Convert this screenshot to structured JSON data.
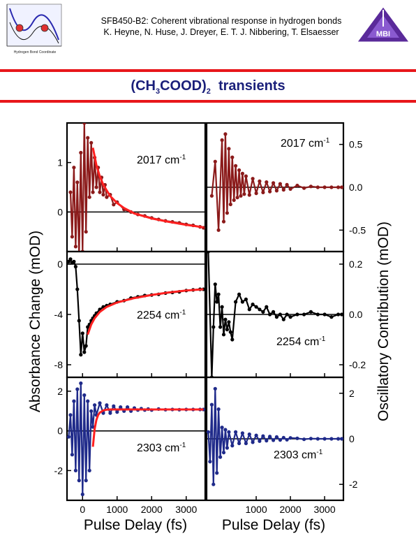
{
  "header": {
    "line1": "SFB450-B2: Coherent vibrational response in hydrogen bonds",
    "line2": "K. Heyne, N. Huse, J. Dreyer, E. T. J. Nibbering, T. Elsaesser",
    "left_logo_caption": "Hydrogen Bond Coordinate",
    "right_logo_text": "MBI"
  },
  "title": {
    "main": "(CH",
    "sub1": "3",
    "mid": "COOD)",
    "sub2": "2",
    "tail": "  transients"
  },
  "colors": {
    "accent": "#e8171b",
    "title": "#1a1f7a",
    "dark_red": "#8b1a1a",
    "fit_red": "#ff2020",
    "black": "#000000",
    "navy": "#1f2a8a"
  },
  "chart_data": [
    {
      "type": "line",
      "panel": "top-left",
      "annotation": "2017 cm",
      "annotation_sup": "-1",
      "xlim": [
        -450,
        3550
      ],
      "ylim": [
        -0.8,
        1.8
      ],
      "yticks": [
        0,
        1
      ],
      "yticklabels": [
        "0",
        "1"
      ],
      "grid": false,
      "series": [
        {
          "role": "data",
          "color": "#8b1a1a",
          "x": [
            -350,
            -300,
            -250,
            -200,
            -150,
            -100,
            -50,
            0,
            50,
            100,
            150,
            200,
            250,
            300,
            350,
            400,
            450,
            500,
            550,
            600,
            650,
            700,
            800,
            900,
            1000,
            1200,
            1400,
            1600,
            1800,
            2000,
            2200,
            2400,
            2600,
            2800,
            3000,
            3200,
            3400,
            3500
          ],
          "y": [
            0.4,
            -0.5,
            0.9,
            -0.7,
            0.6,
            -0.9,
            1.2,
            -0.8,
            1.8,
            -0.4,
            1.5,
            0.3,
            1.4,
            0.4,
            1.1,
            0.5,
            0.9,
            0.4,
            0.7,
            0.35,
            0.55,
            0.3,
            0.35,
            0.15,
            0.2,
            0.05,
            0.0,
            -0.05,
            -0.08,
            -0.12,
            -0.15,
            -0.18,
            -0.2,
            -0.22,
            -0.25,
            -0.27,
            -0.3,
            -0.32
          ]
        },
        {
          "role": "fit",
          "color": "#ff2020",
          "x": [
            300,
            400,
            500,
            600,
            800,
            1000,
            1200,
            1500,
            2000,
            2500,
            3000,
            3500
          ],
          "y": [
            1.3,
            0.95,
            0.72,
            0.55,
            0.32,
            0.18,
            0.08,
            -0.03,
            -0.13,
            -0.2,
            -0.26,
            -0.31
          ]
        }
      ]
    },
    {
      "type": "line",
      "panel": "top-right",
      "annotation": "2017  cm",
      "annotation_sup": "-1",
      "xlim": [
        -450,
        3550
      ],
      "ylim": [
        -0.75,
        0.75
      ],
      "yticks": [
        0.5,
        0.0,
        -0.5
      ],
      "yticklabels": [
        "0.5",
        "0.0",
        "-0.5"
      ],
      "grid": false,
      "series": [
        {
          "role": "data",
          "color": "#8b1a1a",
          "x": [
            -300,
            -200,
            -100,
            0,
            50,
            100,
            150,
            200,
            250,
            300,
            350,
            400,
            450,
            500,
            550,
            600,
            650,
            700,
            800,
            900,
            1000,
            1100,
            1200,
            1300,
            1400,
            1500,
            1600,
            1700,
            1800,
            1900,
            2000,
            2200,
            2400,
            2600,
            2800,
            3000,
            3200,
            3400,
            3500
          ],
          "y": [
            -0.1,
            0.3,
            -0.5,
            0.55,
            -0.4,
            0.62,
            -0.3,
            0.45,
            -0.2,
            0.35,
            -0.15,
            0.25,
            -0.12,
            0.2,
            -0.1,
            0.16,
            -0.08,
            0.13,
            -0.09,
            0.1,
            -0.07,
            0.07,
            -0.06,
            0.06,
            -0.05,
            0.05,
            -0.04,
            0.04,
            -0.03,
            0.03,
            -0.02,
            0.02,
            -0.01,
            0.01,
            0.0,
            0.0,
            0.0,
            0.0,
            0.0
          ]
        }
      ]
    },
    {
      "type": "line",
      "panel": "middle-left",
      "annotation": "2254 cm",
      "annotation_sup": "-1",
      "xlim": [
        -450,
        3550
      ],
      "ylim": [
        -9,
        1
      ],
      "yticks": [
        0,
        -4,
        -8
      ],
      "yticklabels": [
        "0",
        "-4",
        "-8"
      ],
      "grid": false,
      "series": [
        {
          "role": "data",
          "color": "#000000",
          "x": [
            -400,
            -350,
            -300,
            -250,
            -200,
            -150,
            -100,
            -50,
            0,
            50,
            100,
            150,
            200,
            250,
            300,
            350,
            400,
            500,
            600,
            700,
            800,
            1000,
            1200,
            1400,
            1600,
            1800,
            2000,
            2200,
            2400,
            2600,
            2800,
            3000,
            3200,
            3400,
            3500
          ],
          "y": [
            0.2,
            0.4,
            0.1,
            0.2,
            -0.2,
            -2.0,
            -4.5,
            -7.2,
            -5.5,
            -7.0,
            -6.5,
            -5.0,
            -4.8,
            -4.5,
            -4.3,
            -4.1,
            -3.9,
            -3.6,
            -3.4,
            -3.3,
            -3.2,
            -3.0,
            -2.9,
            -2.7,
            -2.6,
            -2.5,
            -2.45,
            -2.4,
            -2.3,
            -2.25,
            -2.2,
            -2.1,
            -2.05,
            -2.0,
            -2.0
          ]
        },
        {
          "role": "fit",
          "color": "#ff2020",
          "x": [
            150,
            250,
            350,
            500,
            700,
            1000,
            1500,
            2000,
            2500,
            3000,
            3500
          ],
          "y": [
            -5.6,
            -4.8,
            -4.3,
            -3.8,
            -3.4,
            -3.05,
            -2.7,
            -2.45,
            -2.25,
            -2.1,
            -2.0
          ]
        }
      ]
    },
    {
      "type": "line",
      "panel": "middle-right",
      "annotation": "2254 cm",
      "annotation_sup": "-1",
      "xlim": [
        -450,
        3550
      ],
      "ylim": [
        -0.25,
        0.25
      ],
      "yticks": [
        0.2,
        0.0,
        -0.2
      ],
      "yticklabels": [
        "0.2",
        "0.0",
        "-0.2"
      ],
      "grid": false,
      "series": [
        {
          "role": "data",
          "color": "#000000",
          "x": [
            -400,
            -300,
            -250,
            -200,
            -150,
            -100,
            -50,
            0,
            50,
            100,
            150,
            200,
            250,
            300,
            400,
            500,
            600,
            700,
            800,
            900,
            1000,
            1100,
            1200,
            1300,
            1400,
            1500,
            1600,
            1700,
            1800,
            1900,
            2000,
            2200,
            2400,
            2600,
            2800,
            3000,
            3200,
            3400,
            3500
          ],
          "y": [
            0.25,
            -0.25,
            -0.05,
            0.12,
            0.05,
            0.08,
            -0.05,
            0.03,
            -0.08,
            -0.02,
            -0.06,
            -0.03,
            -0.07,
            -0.1,
            0.05,
            0.08,
            0.05,
            0.06,
            0.02,
            0.04,
            0.03,
            0.02,
            0.01,
            0.03,
            0.0,
            0.01,
            -0.01,
            0.0,
            -0.02,
            0.0,
            -0.01,
            0.0,
            0.0,
            0.01,
            0.0,
            0.0,
            -0.01,
            0.0,
            0.0
          ]
        }
      ]
    },
    {
      "type": "line",
      "panel": "bottom-left",
      "annotation": "2303 cm",
      "annotation_sup": "-1",
      "xlim": [
        -450,
        3550
      ],
      "ylim": [
        -3.5,
        2.7
      ],
      "yticks": [
        2,
        0,
        -2
      ],
      "yticklabels": [
        "2",
        "0",
        "-2"
      ],
      "grid": false,
      "series": [
        {
          "role": "data",
          "color": "#1f2a8a",
          "x": [
            -400,
            -350,
            -300,
            -250,
            -200,
            -150,
            -100,
            -50,
            0,
            50,
            100,
            150,
            200,
            250,
            300,
            350,
            400,
            500,
            600,
            700,
            800,
            900,
            1000,
            1100,
            1200,
            1300,
            1400,
            1500,
            1600,
            1700,
            1800,
            1900,
            2000,
            2200,
            2400,
            2600,
            2800,
            3000,
            3200,
            3400,
            3500
          ],
          "y": [
            -0.3,
            0.8,
            -1.2,
            1.5,
            -2.0,
            2.1,
            -2.5,
            2.4,
            -3.2,
            1.8,
            -2.5,
            1.5,
            -2.0,
            1.0,
            0.2,
            1.3,
            0.8,
            1.4,
            0.9,
            1.3,
            0.9,
            1.25,
            0.95,
            1.2,
            1.0,
            1.2,
            1.0,
            1.15,
            1.05,
            1.12,
            1.05,
            1.1,
            1.05,
            1.1,
            1.07,
            1.08,
            1.07,
            1.08,
            1.08,
            1.08,
            1.08
          ]
        },
        {
          "role": "fit",
          "color": "#ff2020",
          "x": [
            300,
            350,
            400,
            450,
            500,
            600,
            700,
            800,
            1000,
            1500,
            2000,
            2500,
            3000,
            3500
          ],
          "y": [
            -0.8,
            0.1,
            0.55,
            0.8,
            0.92,
            1.03,
            1.07,
            1.08,
            1.08,
            1.08,
            1.08,
            1.08,
            1.08,
            1.08
          ]
        }
      ]
    },
    {
      "type": "line",
      "panel": "bottom-right",
      "annotation": "2303 cm",
      "annotation_sup": "-1",
      "xlim": [
        -450,
        3550
      ],
      "ylim": [
        -2.7,
        2.7
      ],
      "yticks": [
        2,
        0,
        -2
      ],
      "yticklabels": [
        "2",
        "0",
        "-2"
      ],
      "xticks": [
        1000,
        2000,
        3000
      ],
      "xticklabels": [
        "1000",
        "2000",
        "3000"
      ],
      "grid": false,
      "series": [
        {
          "role": "data",
          "color": "#1f2a8a",
          "x": [
            -400,
            -350,
            -300,
            -250,
            -200,
            -150,
            -100,
            -50,
            0,
            50,
            100,
            150,
            200,
            300,
            400,
            500,
            600,
            700,
            800,
            900,
            1000,
            1100,
            1200,
            1300,
            1400,
            1500,
            1600,
            1700,
            1800,
            1900,
            2000,
            2200,
            2400,
            2600,
            2800,
            3000,
            3200,
            3400,
            3500
          ],
          "y": [
            0.3,
            -1.0,
            1.5,
            -2.0,
            2.2,
            -1.5,
            1.3,
            -0.8,
            0.5,
            -0.6,
            0.4,
            -0.4,
            0.3,
            -0.3,
            0.3,
            -0.2,
            0.25,
            -0.2,
            0.2,
            -0.15,
            0.15,
            -0.1,
            0.12,
            -0.08,
            0.1,
            -0.06,
            0.08,
            -0.05,
            0.05,
            -0.04,
            0.04,
            0.02,
            -0.02,
            0.01,
            0.0,
            0.0,
            0.0,
            0.0,
            0.0
          ]
        }
      ]
    }
  ],
  "axes": {
    "left_ylabel": "Absorbance Change (mOD)",
    "right_ylabel": "Oscillatory Contribution (mOD)",
    "xlabel_left": "Pulse Delay (fs)",
    "xlabel_right": "Pulse Delay (fs)",
    "left_xticklabels": [
      "0",
      "1000",
      "2000",
      "3000"
    ],
    "left_xticks": [
      0,
      1000,
      2000,
      3000
    ],
    "right_xticklabels": [
      "1000",
      "2000",
      "3000"
    ],
    "right_xticks": [
      1000,
      2000,
      3000
    ]
  }
}
